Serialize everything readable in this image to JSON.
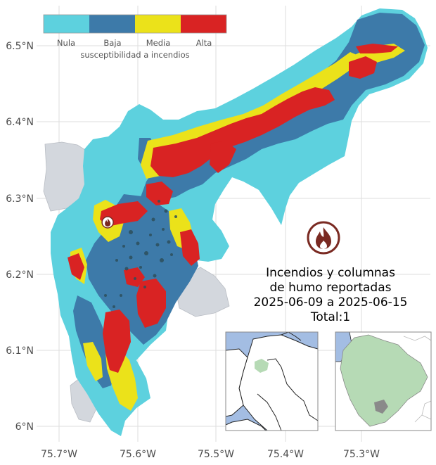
{
  "legend": {
    "title": "susceptibilidad a incendios",
    "classes": [
      {
        "label": "Nula",
        "color": "#5dd1de"
      },
      {
        "label": "Baja",
        "color": "#3d7aa9"
      },
      {
        "label": "Media",
        "color": "#ebe21a"
      },
      {
        "label": "Alta",
        "color": "#d92323"
      }
    ]
  },
  "axes": {
    "y_ticks": [
      "6.5°N",
      "6.4°N",
      "6.3°N",
      "6.2°N",
      "6.1°N",
      "6°N"
    ],
    "x_ticks": [
      "75.7°W",
      "75.6°W",
      "75.5°W",
      "75.4°W",
      "75.3°W"
    ]
  },
  "title": {
    "line1": "Incendios y columnas",
    "line2": "de humo reportadas",
    "line3": "2025-06-09 a 2025-06-15",
    "line4": "Total:1"
  },
  "fire_reports": [
    {
      "lon": -75.638,
      "lat": 6.268
    }
  ],
  "colors": {
    "neighbor_region": "#d3d7dd",
    "inset_sea": "#a3bde3",
    "inset_highlight": "#b6dab5",
    "grid": "#dedede",
    "fire_icon": "#7a2a22"
  }
}
